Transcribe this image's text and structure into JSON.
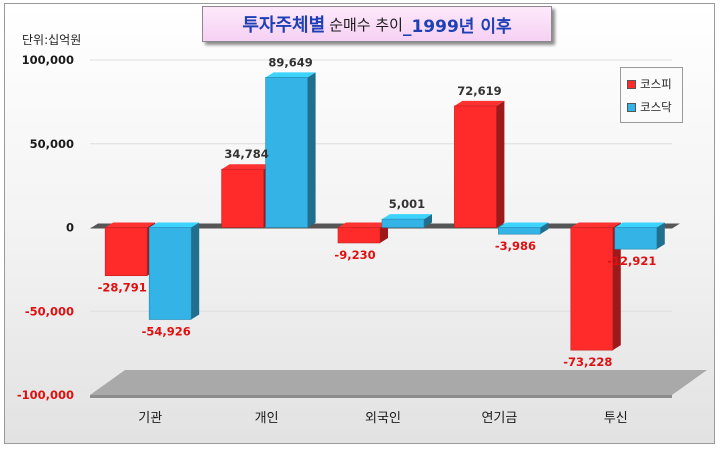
{
  "title": {
    "main": "투자주체별",
    "sub": "순매수 추이",
    "year": "_1999년 이후"
  },
  "unit_label": "단위:십억원",
  "colors": {
    "kospi": "#ff2a2a",
    "kosdaq": "#33b3e6",
    "positive_label": "#333333",
    "negative_label": "#e01010"
  },
  "chart_data": {
    "type": "bar",
    "categories": [
      "기관",
      "개인",
      "외국인",
      "연기금",
      "투신"
    ],
    "series": [
      {
        "name": "코스피",
        "values": [
          -28791,
          34784,
          -9230,
          72619,
          -73228
        ]
      },
      {
        "name": "코스닥",
        "values": [
          -54926,
          89649,
          5001,
          -3986,
          -12921
        ]
      }
    ],
    "data_labels": [
      [
        "-28,791",
        "34,784",
        "-9,230",
        "72,619",
        "-73,228"
      ],
      [
        "-54,926",
        "89,649",
        "5,001",
        "-3,986",
        "-12,921"
      ]
    ],
    "yticks": [
      100000,
      50000,
      0,
      -50000,
      -100000
    ],
    "ytick_labels": [
      "100,000",
      "50,000",
      "0",
      "-50,000",
      "-100,000"
    ],
    "ylim": [
      -100000,
      100000
    ],
    "grid": true,
    "legend_position": "top-right",
    "style": "3d-clustered-column"
  }
}
